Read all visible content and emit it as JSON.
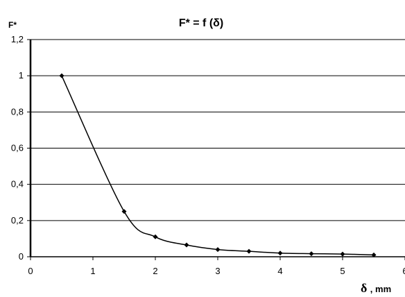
{
  "chart_data": {
    "type": "line",
    "title": "F* = f (δ)",
    "ylabel": "F*",
    "xlabel_symbol": "δ",
    "xlabel_unit": ", mm",
    "xlim": [
      0,
      6
    ],
    "ylim": [
      0,
      1.2
    ],
    "xticks": [
      "0",
      "1",
      "2",
      "3",
      "4",
      "5",
      "6"
    ],
    "yticks": [
      "0",
      "0,2",
      "0,4",
      "0,6",
      "0,8",
      "1",
      "1,2"
    ],
    "grid": "horizontal",
    "series": [
      {
        "x": [
          0.5,
          1.5,
          2.0,
          2.5,
          3.0,
          3.5,
          4.0,
          4.5,
          5.0,
          5.5
        ],
        "values": [
          1.0,
          0.25,
          0.11,
          0.065,
          0.04,
          0.03,
          0.02,
          0.017,
          0.015,
          0.01
        ]
      }
    ]
  }
}
